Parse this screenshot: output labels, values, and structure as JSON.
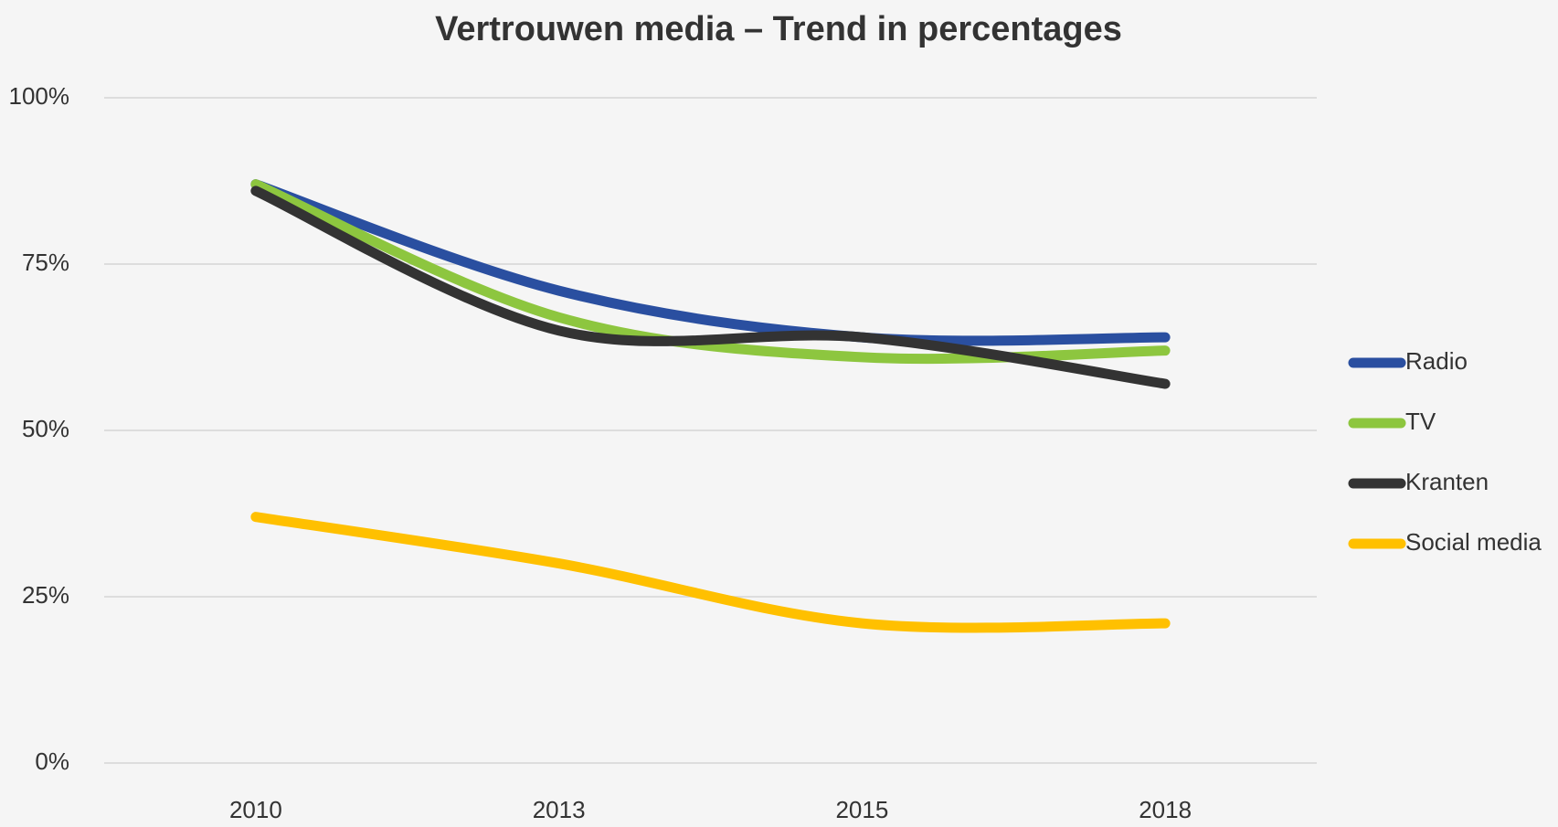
{
  "chart_data": {
    "type": "line",
    "title": "Vertrouwen media – Trend in percentages",
    "categories": [
      "2010",
      "2013",
      "2015",
      "2018"
    ],
    "series": [
      {
        "name": "Radio",
        "color": "#2a4fa0",
        "values": [
          87,
          71,
          64,
          64
        ]
      },
      {
        "name": "TV",
        "color": "#8dc63f",
        "values": [
          87,
          67,
          61,
          62
        ]
      },
      {
        "name": "Kranten",
        "color": "#333333",
        "values": [
          86,
          65,
          64,
          57
        ]
      },
      {
        "name": "Social media",
        "color": "#ffc000",
        "values": [
          37,
          30,
          21,
          21
        ]
      }
    ],
    "ylim": [
      0,
      100
    ],
    "yticks": [
      {
        "value": 0,
        "label": "0%"
      },
      {
        "value": 25,
        "label": "25%"
      },
      {
        "value": 50,
        "label": "50%"
      },
      {
        "value": 75,
        "label": "75%"
      },
      {
        "value": 100,
        "label": "100%"
      }
    ],
    "grid": true,
    "legend": "right"
  }
}
